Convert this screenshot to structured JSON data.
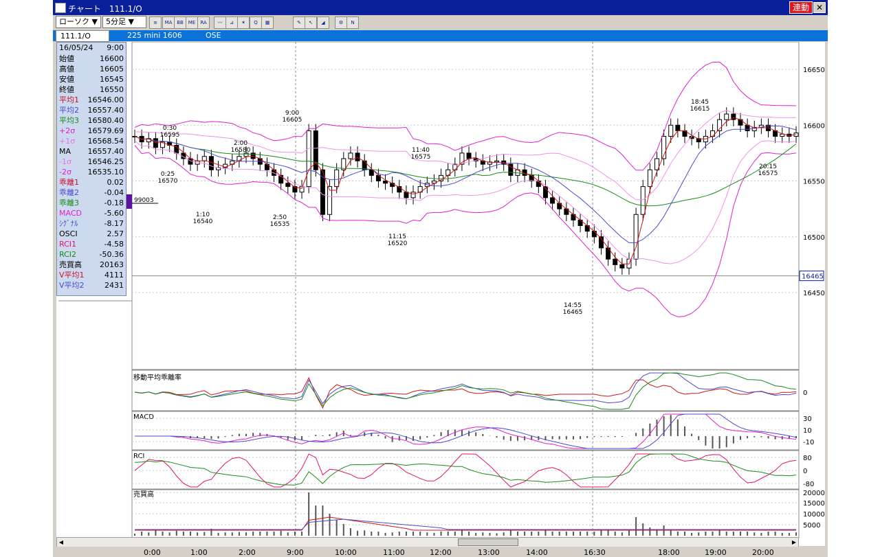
{
  "window": {
    "title": "チャート　111.1/O",
    "link_button": "連動",
    "close_icon": "close-icon"
  },
  "toolbar": {
    "chart_type": "ローソク ▼",
    "interval": "5分足 ▼",
    "tools": [
      {
        "name": "candle-settings-icon",
        "glyph": "≡"
      },
      {
        "name": "ma-indicator-icon",
        "glyph": "MA"
      },
      {
        "name": "bb-indicator-icon",
        "glyph": "BB"
      },
      {
        "name": "me-indicator-icon",
        "glyph": "ME"
      },
      {
        "name": "ra-indicator-icon",
        "glyph": "RA"
      },
      {
        "name": "trendline-icon",
        "glyph": "〰"
      },
      {
        "name": "fibonacci-icon",
        "glyph": "⊿"
      },
      {
        "name": "wave-tool-icon",
        "glyph": "✶"
      },
      {
        "name": "magnify-icon",
        "glyph": "Q"
      },
      {
        "name": "grid-table-icon",
        "glyph": "▦"
      },
      {
        "name": "pencil-icon",
        "glyph": "✎"
      },
      {
        "name": "pointer-icon",
        "glyph": "↖"
      },
      {
        "name": "eraser-icon",
        "glyph": "◢"
      },
      {
        "name": "settings-icon",
        "glyph": "⚙"
      },
      {
        "name": "label-icon",
        "glyph": "N"
      }
    ]
  },
  "infobar": {
    "code": "111.1/O",
    "contract": "225 mini 1606",
    "exchange": "OSE"
  },
  "datapanel": {
    "date": "16/05/24",
    "time": "9:00",
    "rows": [
      {
        "label": "始値",
        "value": "16600",
        "color": "#000000"
      },
      {
        "label": "高値",
        "value": "16605",
        "color": "#000000"
      },
      {
        "label": "安値",
        "value": "16545",
        "color": "#000000"
      },
      {
        "label": "終値",
        "value": "16550",
        "color": "#000000"
      },
      {
        "label": "平均1",
        "value": "16546.00",
        "color": "#c8102e"
      },
      {
        "label": "平均2",
        "value": "16557.40",
        "color": "#4a4ad0"
      },
      {
        "label": "平均3",
        "value": "16580.40",
        "color": "#1a8a1a"
      },
      {
        "label": "+2σ",
        "value": "16579.69",
        "color": "#e020c8"
      },
      {
        "label": "+1σ",
        "value": "16568.54",
        "color": "#f070e0"
      },
      {
        "label": "MA",
        "value": "16557.40",
        "color": "#000000"
      },
      {
        "label": "-1σ",
        "value": "16546.25",
        "color": "#f070e0"
      },
      {
        "label": "-2σ",
        "value": "16535.10",
        "color": "#e020c8"
      },
      {
        "label": "乖離1",
        "value": "0.02",
        "color": "#c8102e"
      },
      {
        "label": "乖離2",
        "value": "-0.04",
        "color": "#4a4ad0"
      },
      {
        "label": "乖離3",
        "value": "-0.18",
        "color": "#1a8a1a"
      },
      {
        "label": "MACD",
        "value": "-5.60",
        "color": "#e020c8"
      },
      {
        "label": "ｼｸﾞﾅﾙ",
        "value": "-8.17",
        "color": "#4a4ad0"
      },
      {
        "label": "OSCI",
        "value": "2.57",
        "color": "#000000"
      },
      {
        "label": "RCI1",
        "value": "-4.58",
        "color": "#e0106e"
      },
      {
        "label": "RCI2",
        "value": "-50.36",
        "color": "#1a8a1a"
      },
      {
        "label": "売買高",
        "value": "20163",
        "color": "#000000"
      },
      {
        "label": "V平均1",
        "value": "4111",
        "color": "#c8102e"
      },
      {
        "label": "V平均2",
        "value": "2431",
        "color": "#4a4ad0"
      }
    ]
  },
  "chart_data": {
    "type": "candlestick",
    "y_ticks": [
      16650,
      16600,
      16550,
      16500,
      16450
    ],
    "current_price": "16465",
    "marker_label": "99003",
    "x_labels": [
      "0:00",
      "1:00",
      "2:00",
      "9:00",
      "10:00",
      "11:00",
      "12:00",
      "13:00",
      "14:00",
      "16:30",
      "18:00",
      "19:00",
      "20:00"
    ],
    "annotations": [
      {
        "time": "0:30",
        "price": "16595"
      },
      {
        "time": "0:25",
        "price": "16570"
      },
      {
        "time": "1:10",
        "price": "16540"
      },
      {
        "time": "2:00",
        "price": "16580"
      },
      {
        "time": "2:50",
        "price": "16535"
      },
      {
        "time": "9:00",
        "price": "16605"
      },
      {
        "time": "11:40",
        "price": "16575"
      },
      {
        "time": "11:15",
        "price": "16520"
      },
      {
        "time": "14:55",
        "price": "16465"
      },
      {
        "time": "18:45",
        "price": "16615"
      },
      {
        "time": "20:15",
        "price": "16575"
      }
    ],
    "close": [
      16590,
      16585,
      16588,
      16580,
      16585,
      16582,
      16575,
      16570,
      16565,
      16568,
      16572,
      16560,
      16562,
      16565,
      16568,
      16572,
      16575,
      16570,
      16565,
      16560,
      16555,
      16548,
      16545,
      16540,
      16545,
      16595,
      16560,
      16520,
      16545,
      16560,
      16570,
      16575,
      16568,
      16560,
      16555,
      16550,
      16548,
      16545,
      16540,
      16535,
      16540,
      16545,
      16548,
      16550,
      16555,
      16560,
      16565,
      16575,
      16570,
      16568,
      16565,
      16567,
      16568,
      16565,
      16555,
      16560,
      16555,
      16550,
      16545,
      16535,
      16530,
      16525,
      16520,
      16515,
      16510,
      16505,
      16500,
      16490,
      16480,
      16475,
      16472,
      16480,
      16520,
      16545,
      16560,
      16570,
      16590,
      16600,
      16595,
      16590,
      16588,
      16585,
      16590,
      16595,
      16605,
      16610,
      16605,
      16600,
      16595,
      16598,
      16600,
      16595,
      16590,
      16592,
      16590,
      16593
    ],
    "panels": [
      {
        "name": "移動平均乖離率",
        "ticks": [
          "0"
        ]
      },
      {
        "name": "MACD",
        "ticks": [
          "30",
          "10",
          "-10"
        ]
      },
      {
        "name": "RCI",
        "ticks": [
          "80",
          "0",
          "-80"
        ]
      },
      {
        "name": "売買高",
        "ticks": [
          "20000",
          "15000",
          "10000",
          "5000"
        ]
      }
    ],
    "colors": {
      "candle_up": "#ffffff",
      "candle_down": "#000000",
      "ma1": "#d41414",
      "ma2": "#4a4ad0",
      "ma3": "#1a8a1a",
      "bb_outer": "#e020c8",
      "bb_inner": "#f090e8",
      "rci1": "#e0106e",
      "rci2": "#1a8a1a",
      "price_flag": "#0a1f9a",
      "marker": "#5a14a0"
    }
  }
}
